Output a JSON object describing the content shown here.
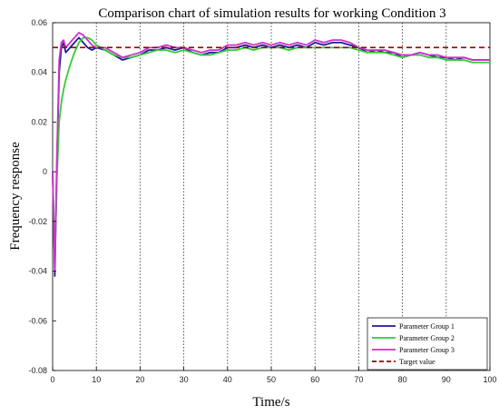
{
  "chart_data": {
    "type": "line",
    "title": "Comparison chart of simulation results for working Condition 3",
    "xlabel": "Time/s",
    "ylabel": "Frequency response",
    "xlim": [
      0,
      100
    ],
    "ylim": [
      -0.08,
      0.06
    ],
    "xticks": [
      0,
      10,
      20,
      30,
      40,
      50,
      60,
      70,
      80,
      90,
      100
    ],
    "yticks": [
      -0.08,
      -0.06,
      -0.04,
      -0.02,
      0,
      0.02,
      0.04,
      0.06
    ],
    "xtick_labels": [
      "0",
      "10",
      "20",
      "30",
      "40",
      "50",
      "60",
      "70",
      "80",
      "90",
      "100"
    ],
    "ytick_labels": [
      "-0.08",
      "-0.06",
      "-0.04",
      "-0.02",
      "0",
      "0.02",
      "0.04",
      "0.06"
    ],
    "grid": "vertical dotted lines at x ticks",
    "legend_position": "bottom-right",
    "series": [
      {
        "name": "Parameter Group 1",
        "color": "#1c1c9c",
        "style": "solid",
        "x": [
          0,
          0.5,
          1,
          1.5,
          2,
          2.5,
          3,
          4,
          5,
          6,
          7,
          8,
          9,
          10,
          12,
          14,
          16,
          18,
          20,
          22,
          24,
          26,
          28,
          30,
          32,
          34,
          36,
          38,
          40,
          42,
          44,
          46,
          48,
          50,
          52,
          54,
          56,
          58,
          60,
          62,
          64,
          66,
          68,
          70,
          72,
          74,
          76,
          78,
          80,
          82,
          84,
          86,
          88,
          90,
          92,
          94,
          96,
          98,
          100
        ],
        "y": [
          0,
          -0.042,
          0.005,
          0.04,
          0.05,
          0.052,
          0.048,
          0.05,
          0.052,
          0.054,
          0.052,
          0.05,
          0.049,
          0.05,
          0.049,
          0.047,
          0.045,
          0.046,
          0.047,
          0.049,
          0.049,
          0.05,
          0.049,
          0.05,
          0.048,
          0.047,
          0.048,
          0.048,
          0.05,
          0.05,
          0.051,
          0.05,
          0.051,
          0.05,
          0.051,
          0.05,
          0.051,
          0.05,
          0.052,
          0.051,
          0.052,
          0.052,
          0.051,
          0.05,
          0.048,
          0.049,
          0.048,
          0.048,
          0.046,
          0.047,
          0.048,
          0.047,
          0.046,
          0.046,
          0.045,
          0.046,
          0.045,
          0.045,
          0.045
        ]
      },
      {
        "name": "Parameter Group 2",
        "color": "#33cc33",
        "style": "solid",
        "x": [
          0,
          0.5,
          1,
          1.5,
          2,
          2.5,
          3,
          4,
          5,
          6,
          7,
          8,
          9,
          10,
          12,
          14,
          16,
          18,
          20,
          22,
          24,
          26,
          28,
          30,
          32,
          34,
          36,
          38,
          40,
          42,
          44,
          46,
          48,
          50,
          52,
          54,
          56,
          58,
          60,
          62,
          64,
          66,
          68,
          70,
          72,
          74,
          76,
          78,
          80,
          82,
          84,
          86,
          88,
          90,
          92,
          94,
          96,
          98,
          100
        ],
        "y": [
          0,
          -0.035,
          -0.002,
          0.02,
          0.028,
          0.033,
          0.037,
          0.043,
          0.048,
          0.052,
          0.054,
          0.054,
          0.053,
          0.051,
          0.049,
          0.047,
          0.046,
          0.046,
          0.047,
          0.048,
          0.049,
          0.049,
          0.048,
          0.049,
          0.048,
          0.047,
          0.047,
          0.048,
          0.049,
          0.049,
          0.05,
          0.049,
          0.05,
          0.05,
          0.05,
          0.049,
          0.05,
          0.05,
          0.05,
          0.05,
          0.05,
          0.05,
          0.05,
          0.049,
          0.048,
          0.048,
          0.048,
          0.047,
          0.046,
          0.047,
          0.047,
          0.046,
          0.046,
          0.045,
          0.045,
          0.045,
          0.044,
          0.044,
          0.044
        ]
      },
      {
        "name": "Parameter Group 3",
        "color": "#cc33cc",
        "style": "solid",
        "x": [
          0,
          0.5,
          1,
          1.5,
          2,
          2.5,
          3,
          4,
          5,
          6,
          7,
          8,
          9,
          10,
          12,
          14,
          16,
          18,
          20,
          22,
          24,
          26,
          28,
          30,
          32,
          34,
          36,
          38,
          40,
          42,
          44,
          46,
          48,
          50,
          52,
          54,
          56,
          58,
          60,
          62,
          64,
          66,
          68,
          70,
          72,
          74,
          76,
          78,
          80,
          82,
          84,
          86,
          88,
          90,
          92,
          94,
          96,
          98,
          100
        ],
        "y": [
          0,
          -0.04,
          0.008,
          0.045,
          0.052,
          0.053,
          0.05,
          0.052,
          0.054,
          0.056,
          0.055,
          0.053,
          0.051,
          0.05,
          0.05,
          0.048,
          0.046,
          0.047,
          0.048,
          0.05,
          0.05,
          0.051,
          0.05,
          0.05,
          0.049,
          0.048,
          0.049,
          0.049,
          0.051,
          0.051,
          0.052,
          0.051,
          0.052,
          0.051,
          0.052,
          0.051,
          0.052,
          0.051,
          0.053,
          0.052,
          0.053,
          0.053,
          0.052,
          0.05,
          0.049,
          0.049,
          0.049,
          0.048,
          0.047,
          0.047,
          0.048,
          0.047,
          0.047,
          0.046,
          0.046,
          0.046,
          0.045,
          0.045,
          0.045
        ]
      },
      {
        "name": "Target value",
        "color": "#990000",
        "style": "dashed",
        "x": [
          0,
          100
        ],
        "y": [
          0.05,
          0.05
        ]
      }
    ]
  }
}
